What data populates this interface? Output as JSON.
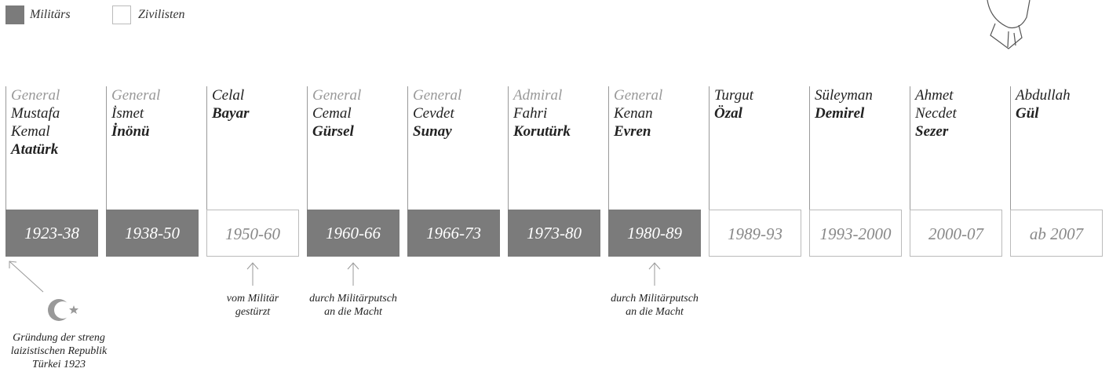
{
  "legend": [
    {
      "label": "Militärs",
      "color": "#7b7b7b"
    },
    {
      "label": "Zivilisten",
      "color": "#ffffff"
    }
  ],
  "presidents": [
    {
      "title": "General",
      "given": [
        "Mustafa",
        "Kemal"
      ],
      "surname": "Atatürk",
      "years": "1923-38",
      "color": "#7b7b7b"
    },
    {
      "title": "General",
      "given": [
        "İsmet"
      ],
      "surname": "İnönü",
      "years": "1938-50",
      "color": "#7b7b7b"
    },
    {
      "given": [
        "Celal"
      ],
      "surname": "Bayar",
      "years": "1950-60",
      "color": "#ffffff"
    },
    {
      "title": "General",
      "given": [
        "Cemal"
      ],
      "surname": "Gürsel",
      "years": "1960-66",
      "color": "#7b7b7b"
    },
    {
      "title": "General",
      "given": [
        "Cevdet"
      ],
      "surname": "Sunay",
      "years": "1966-73",
      "color": "#7b7b7b"
    },
    {
      "title": "Admiral",
      "given": [
        "Fahri"
      ],
      "surname": "Korutürk",
      "years": "1973-80",
      "color": "#7b7b7b"
    },
    {
      "title": "General",
      "given": [
        "Kenan"
      ],
      "surname": "Evren",
      "years": "1980-89",
      "color": "#7b7b7b"
    },
    {
      "given": [
        "Turgut"
      ],
      "surname": "Özal",
      "years": "1989-93",
      "color": "#ffffff"
    },
    {
      "given": [
        "Süleyman"
      ],
      "surname": "Demirel",
      "years": "1993-2000",
      "color": "#ffffff"
    },
    {
      "given": [
        "Ahmet",
        "Necdet"
      ],
      "surname": "Sezer",
      "years": "2000-07",
      "color": "#ffffff"
    },
    {
      "given": [
        "Abdullah"
      ],
      "surname": "Gül",
      "years": "ab 2007",
      "color": "#ffffff"
    }
  ],
  "annotations": [
    {
      "lines": [
        "Gründung der streng",
        "laizistischen Republik",
        "Türkei 1923"
      ]
    },
    {
      "lines": [
        "vom Militär",
        "gestürzt"
      ]
    },
    {
      "lines": [
        "durch Militärputsch",
        "an die Macht"
      ]
    },
    {
      "lines": [
        "durch Militärputsch",
        "an die Macht"
      ]
    }
  ]
}
